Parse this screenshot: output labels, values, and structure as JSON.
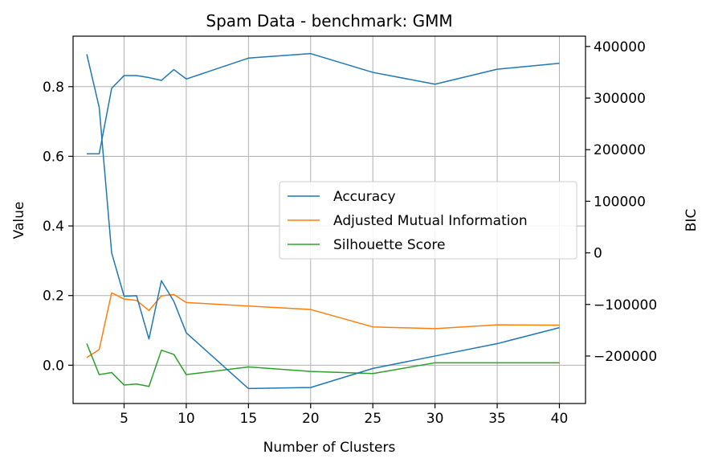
{
  "chart_data": {
    "type": "line",
    "title": "Spam Data - benchmark: GMM",
    "xlabel": "Number of Clusters",
    "ylabel": "Value",
    "y2label": "BIC",
    "xlim": [
      0.9,
      42.1
    ],
    "ylim": [
      -0.11,
      0.945
    ],
    "y2lim": [
      -292000,
      420000
    ],
    "x_ticks": [
      5,
      10,
      15,
      20,
      25,
      30,
      35,
      40
    ],
    "y_ticks": [
      0.0,
      0.2,
      0.4,
      0.6,
      0.8
    ],
    "y_tick_labels": [
      "0.0",
      "0.2",
      "0.4",
      "0.6",
      "0.8"
    ],
    "y2_ticks": [
      -200000,
      -100000,
      0,
      100000,
      200000,
      300000,
      400000
    ],
    "y2_tick_labels": [
      "−200000",
      "−100000",
      "0",
      "100000",
      "200000",
      "300000",
      "400000"
    ],
    "grid": true,
    "legend_position": "center-right",
    "x": [
      2,
      3,
      4,
      5,
      6,
      7,
      8,
      9,
      10,
      15,
      20,
      25,
      30,
      35,
      40
    ],
    "series": [
      {
        "name": "Accuracy",
        "axis": "left",
        "color": "#1f77b4",
        "legend": true,
        "values": [
          0.607,
          0.607,
          0.795,
          0.832,
          0.832,
          0.826,
          0.818,
          0.849,
          0.822,
          0.882,
          0.895,
          0.841,
          0.807,
          0.85,
          0.867
        ]
      },
      {
        "name": "Adjusted Mutual Information",
        "axis": "left",
        "color": "#ff7f0e",
        "legend": true,
        "values": [
          0.022,
          0.045,
          0.208,
          0.19,
          0.186,
          0.157,
          0.199,
          0.203,
          0.18,
          0.17,
          0.16,
          0.11,
          0.105,
          0.116,
          0.115
        ]
      },
      {
        "name": "Silhouette Score",
        "axis": "left",
        "color": "#2ca02c",
        "legend": true,
        "values": [
          0.062,
          -0.027,
          -0.021,
          -0.057,
          -0.054,
          -0.061,
          0.043,
          0.031,
          -0.027,
          -0.005,
          -0.018,
          -0.024,
          0.007,
          0.007,
          0.007
        ]
      },
      {
        "axis": "right",
        "color": "#1f77b4",
        "legend": false,
        "values": [
          385000,
          282000,
          0,
          -84000,
          -83000,
          -167000,
          -54000,
          -94000,
          -155000,
          -263000,
          -261000,
          -224000,
          -200000,
          -176000,
          -145000
        ]
      }
    ]
  }
}
